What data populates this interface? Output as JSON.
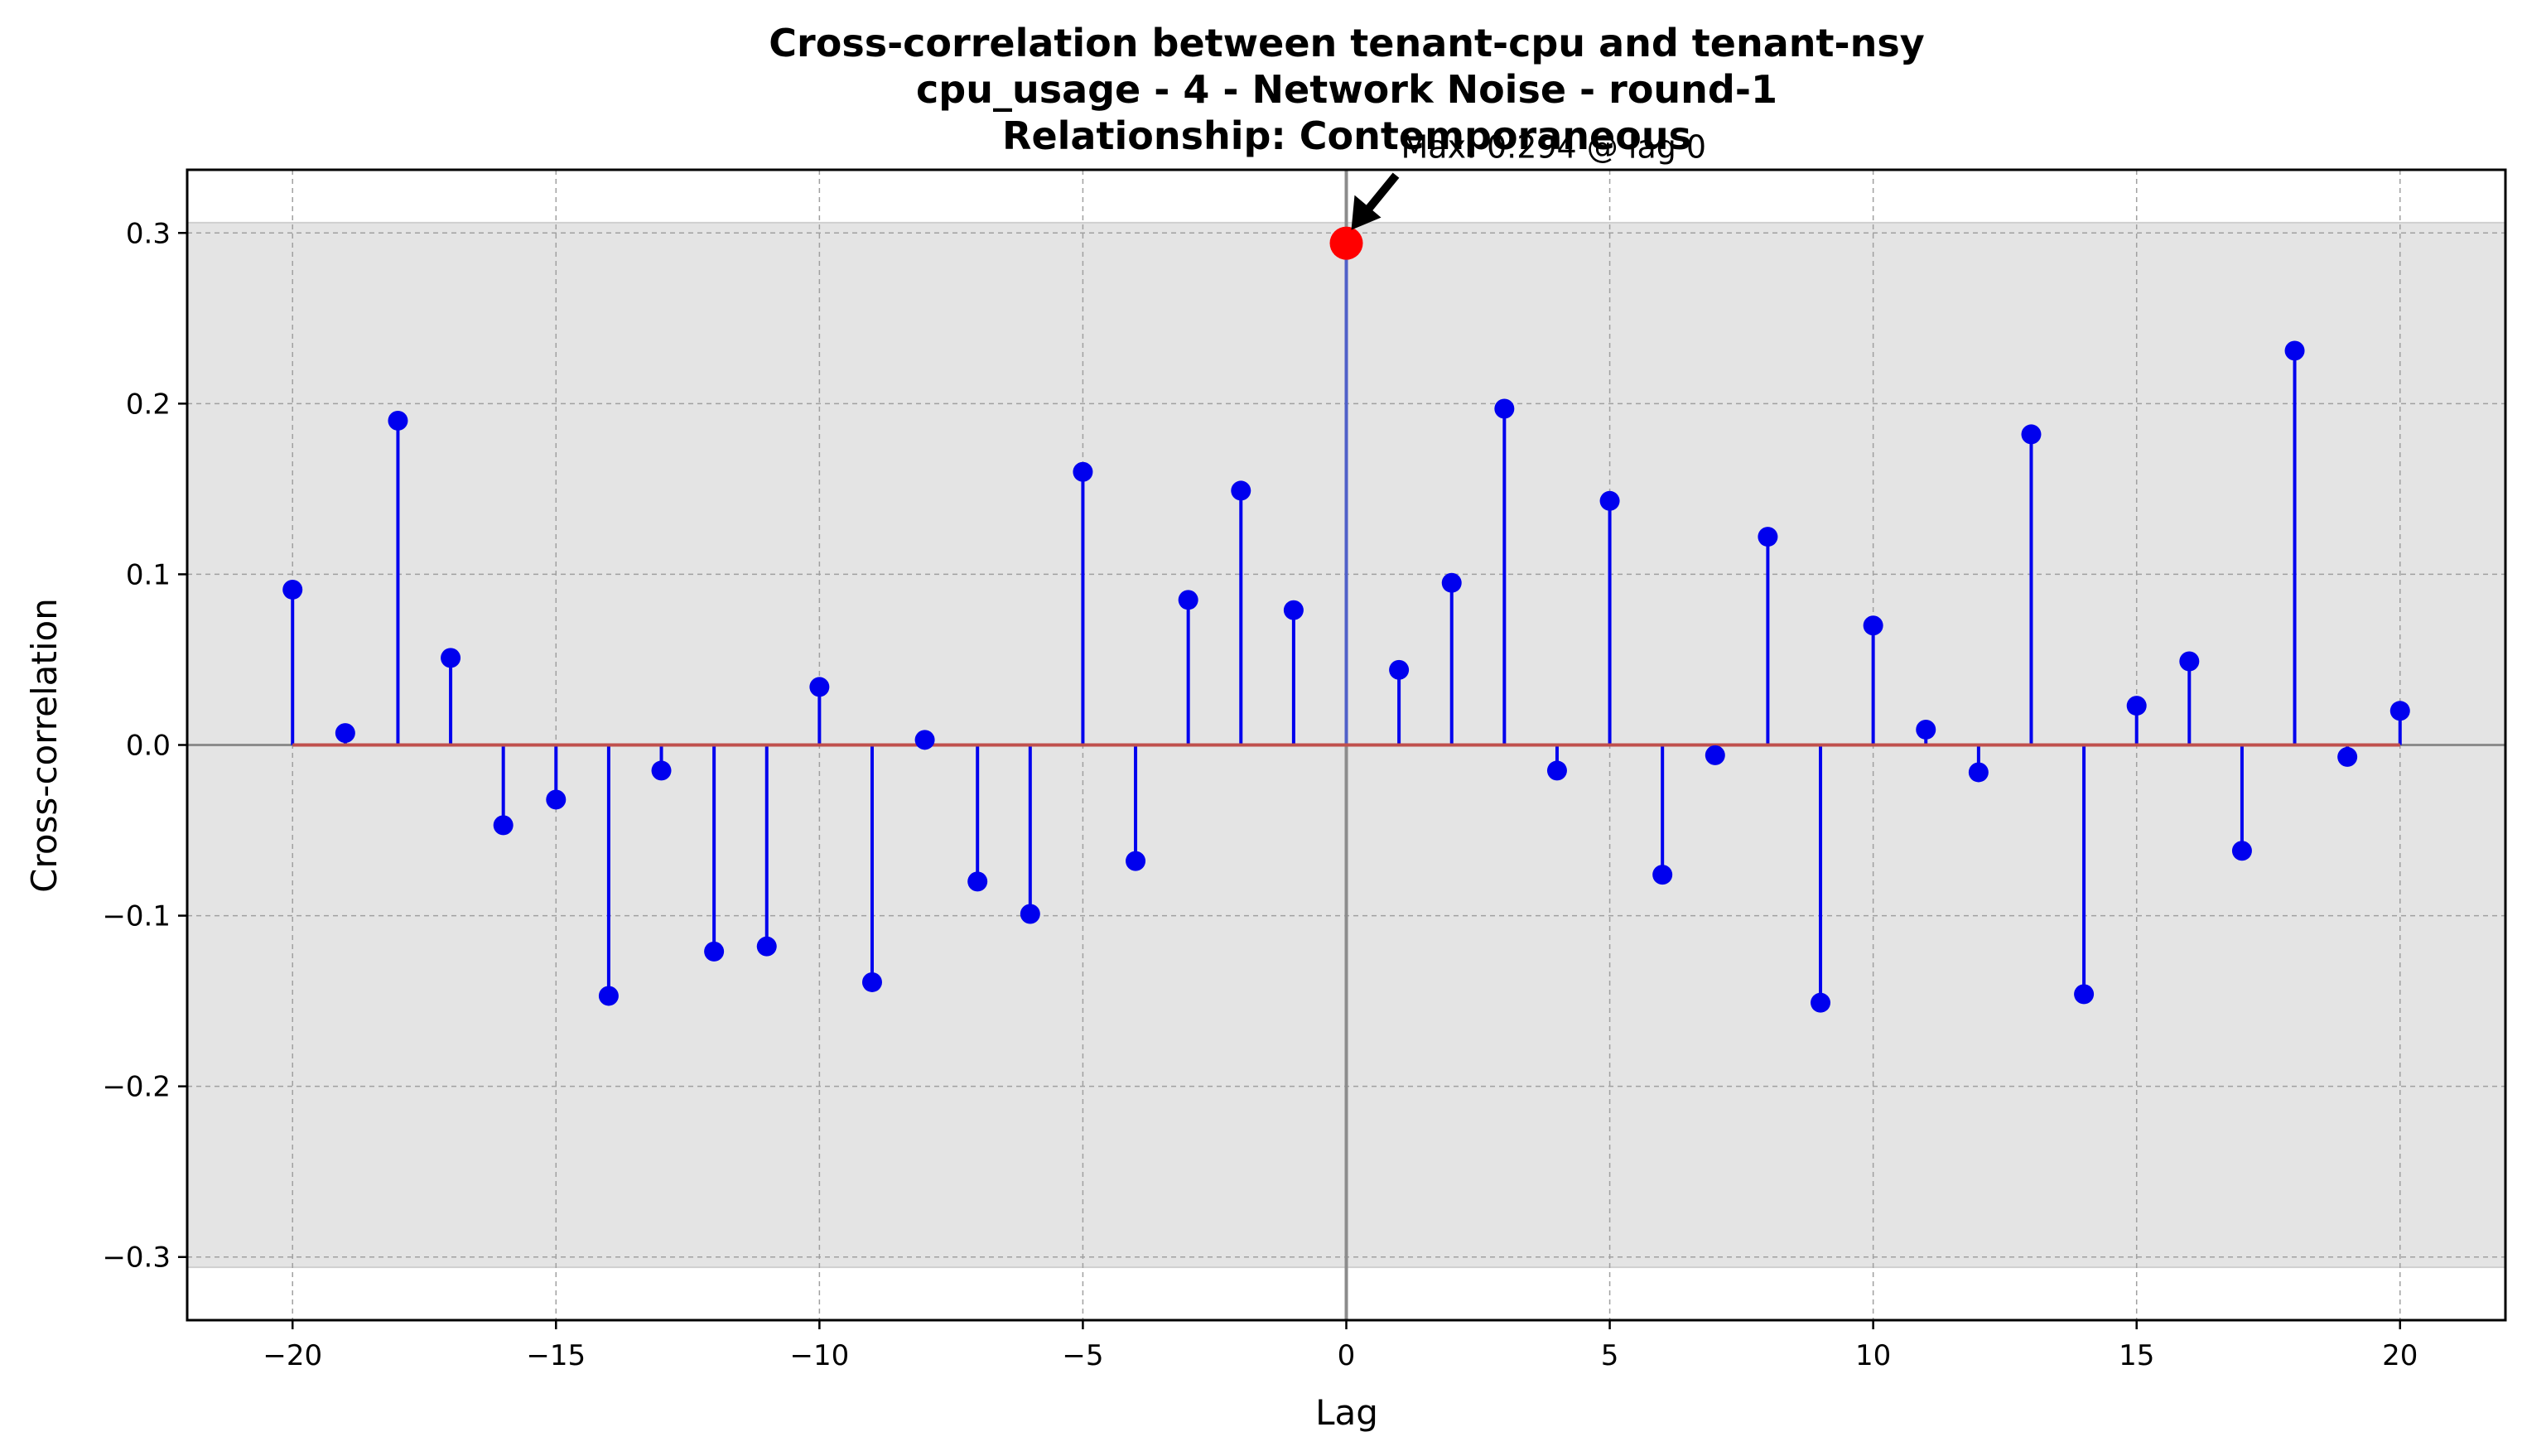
{
  "chart_data": {
    "type": "stem",
    "title_lines": [
      "Cross-correlation between tenant-cpu and tenant-nsy",
      "cpu_usage - 4 - Network Noise - round-1",
      "Relationship: Contemporaneous"
    ],
    "xlabel": "Lag",
    "ylabel": "Cross-correlation",
    "xlim": [
      -22,
      22
    ],
    "ylim": [
      -0.337,
      0.337
    ],
    "xticks": [
      -20,
      -15,
      -10,
      -5,
      0,
      5,
      10,
      15,
      20
    ],
    "xtick_labels": [
      "−20",
      "−15",
      "−10",
      "−5",
      "0",
      "5",
      "10",
      "15",
      "20"
    ],
    "yticks": [
      -0.3,
      -0.2,
      -0.1,
      0.0,
      0.1,
      0.2,
      0.3
    ],
    "ytick_labels": [
      "−0.3",
      "−0.2",
      "−0.1",
      "0.0",
      "0.1",
      "0.2",
      "0.3"
    ],
    "grid": true,
    "confidence_band": [
      -0.306,
      0.306
    ],
    "lags": [
      -20,
      -19,
      -18,
      -17,
      -16,
      -15,
      -14,
      -13,
      -12,
      -11,
      -10,
      -9,
      -8,
      -7,
      -6,
      -5,
      -4,
      -3,
      -2,
      -1,
      0,
      1,
      2,
      3,
      4,
      5,
      6,
      7,
      8,
      9,
      10,
      11,
      12,
      13,
      14,
      15,
      16,
      17,
      18,
      19,
      20
    ],
    "values": [
      0.091,
      0.007,
      0.19,
      0.051,
      -0.047,
      -0.032,
      -0.147,
      -0.015,
      -0.121,
      -0.118,
      0.034,
      -0.139,
      0.003,
      -0.08,
      -0.099,
      0.16,
      -0.068,
      0.085,
      0.149,
      0.079,
      0.294,
      0.044,
      0.095,
      0.197,
      -0.015,
      0.143,
      -0.076,
      -0.006,
      0.122,
      -0.151,
      0.07,
      0.009,
      -0.016,
      0.182,
      -0.146,
      0.023,
      0.049,
      -0.062,
      0.231,
      -0.007,
      0.02
    ],
    "max_point": {
      "lag": 0,
      "value": 0.294
    },
    "annotation": "Max: 0.294 @ lag 0",
    "colors": {
      "stem": "#0000ee",
      "marker": "#0000ee",
      "max_marker": "#ff0000",
      "baseline": "#c0504d",
      "band": "#e4e4e4",
      "zero_lines": "#8c8c8c",
      "grid": "#a0a0a0"
    }
  }
}
